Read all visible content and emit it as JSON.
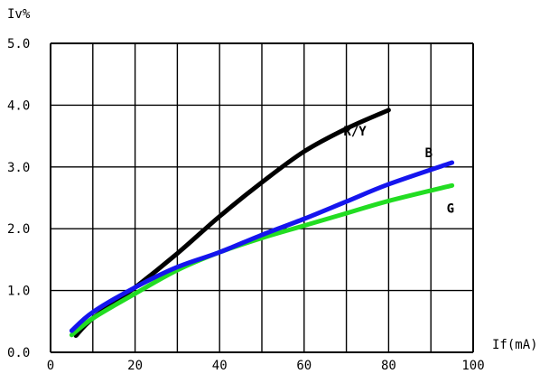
{
  "chart_data": {
    "type": "line",
    "ylabel": "Iv%",
    "xlabel": "If(mA)",
    "xlim": [
      0,
      100
    ],
    "ylim": [
      0,
      5
    ],
    "x_ticks": [
      0,
      20,
      40,
      60,
      80,
      100
    ],
    "y_ticks": [
      0,
      1,
      2,
      3,
      4,
      5
    ],
    "x_tick_labels": [
      "0",
      "20",
      "40",
      "60",
      "80",
      "100"
    ],
    "y_tick_labels": [
      "0.0",
      "1.0",
      "2.0",
      "3.0",
      "4.0",
      "5.0"
    ],
    "grid": true,
    "series": [
      {
        "name": "R/Y",
        "color": "#000000",
        "x": [
          6,
          10,
          20,
          30,
          40,
          50,
          60,
          70,
          80
        ],
        "y": [
          0.27,
          0.55,
          1.05,
          1.6,
          2.2,
          2.75,
          3.25,
          3.62,
          3.92
        ]
      },
      {
        "name": "G",
        "color": "#22dd22",
        "x": [
          5,
          10,
          20,
          30,
          40,
          50,
          60,
          70,
          80,
          95
        ],
        "y": [
          0.28,
          0.55,
          0.95,
          1.33,
          1.62,
          1.85,
          2.05,
          2.25,
          2.45,
          2.7
        ]
      },
      {
        "name": "B",
        "color": "#1515ee",
        "x": [
          5,
          10,
          20,
          30,
          40,
          50,
          60,
          70,
          80,
          95
        ],
        "y": [
          0.35,
          0.65,
          1.05,
          1.38,
          1.62,
          1.9,
          2.16,
          2.44,
          2.72,
          3.07
        ]
      }
    ]
  }
}
